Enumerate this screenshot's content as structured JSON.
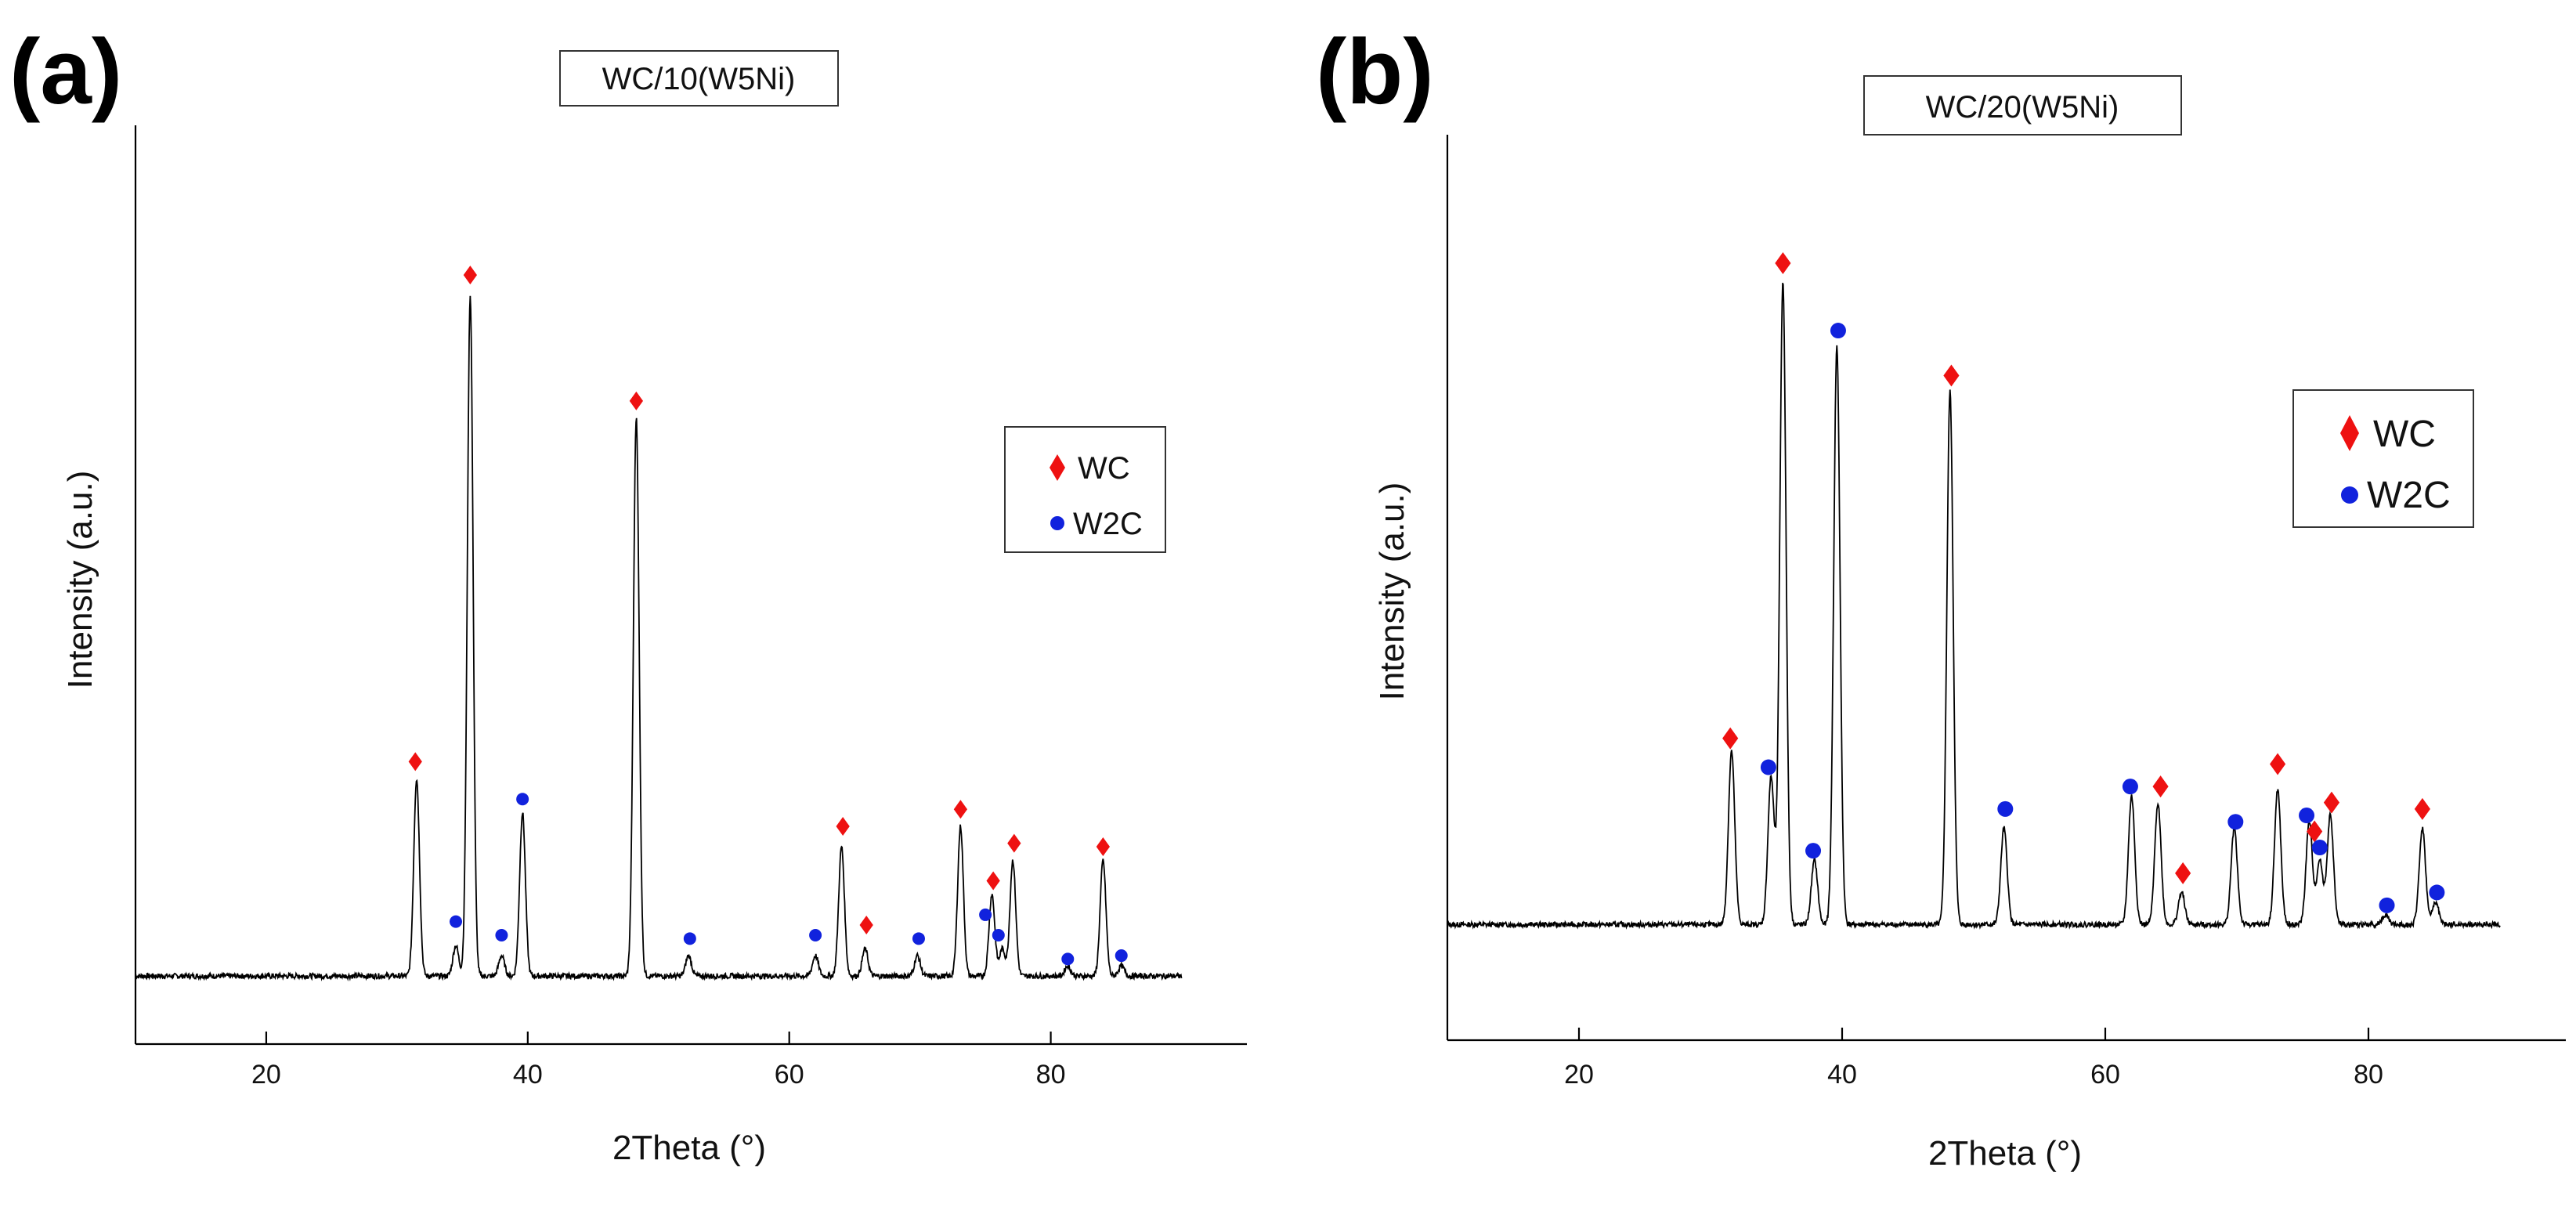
{
  "chart_data": [
    {
      "type": "line",
      "panel_label": "(a)",
      "title": "WC/10(W5Ni)",
      "xlabel": "2Theta (°)",
      "ylabel": "Intensity (a.u.)",
      "xlim": [
        10,
        95
      ],
      "ylim": [
        -0.1,
        1.25
      ],
      "x_ticks": [
        20,
        40,
        60,
        80
      ],
      "x_tick_labels": [
        "20",
        "40",
        "60",
        "80"
      ],
      "pattern_range": [
        10,
        90
      ],
      "baseline": 0,
      "peaks": [
        {
          "x": 31.5,
          "y": 0.29
        },
        {
          "x": 34.5,
          "y": 0.045
        },
        {
          "x": 35.6,
          "y": 1.0
        },
        {
          "x": 38.0,
          "y": 0.03
        },
        {
          "x": 39.6,
          "y": 0.24
        },
        {
          "x": 48.3,
          "y": 0.82
        },
        {
          "x": 52.3,
          "y": 0.03
        },
        {
          "x": 62.0,
          "y": 0.03
        },
        {
          "x": 64.0,
          "y": 0.19
        },
        {
          "x": 65.8,
          "y": 0.04
        },
        {
          "x": 69.8,
          "y": 0.03
        },
        {
          "x": 73.1,
          "y": 0.22
        },
        {
          "x": 75.5,
          "y": 0.12
        },
        {
          "x": 76.3,
          "y": 0.04
        },
        {
          "x": 77.1,
          "y": 0.17
        },
        {
          "x": 81.3,
          "y": 0.015
        },
        {
          "x": 84.0,
          "y": 0.17
        },
        {
          "x": 85.4,
          "y": 0.015
        }
      ],
      "markers": [
        {
          "phase": "WC",
          "x": 31.4,
          "y": 0.315
        },
        {
          "phase": "WC",
          "x": 35.6,
          "y": 1.03
        },
        {
          "phase": "WC",
          "x": 48.3,
          "y": 0.845
        },
        {
          "phase": "WC",
          "x": 64.1,
          "y": 0.22
        },
        {
          "phase": "WC",
          "x": 65.9,
          "y": 0.075
        },
        {
          "phase": "WC",
          "x": 73.1,
          "y": 0.245
        },
        {
          "phase": "WC",
          "x": 75.6,
          "y": 0.14
        },
        {
          "phase": "WC",
          "x": 77.2,
          "y": 0.195
        },
        {
          "phase": "WC",
          "x": 84.0,
          "y": 0.19
        },
        {
          "phase": "W2C",
          "x": 34.5,
          "y": 0.08
        },
        {
          "phase": "W2C",
          "x": 38.0,
          "y": 0.06
        },
        {
          "phase": "W2C",
          "x": 39.6,
          "y": 0.26
        },
        {
          "phase": "W2C",
          "x": 52.4,
          "y": 0.055
        },
        {
          "phase": "W2C",
          "x": 62.0,
          "y": 0.06
        },
        {
          "phase": "W2C",
          "x": 69.9,
          "y": 0.055
        },
        {
          "phase": "W2C",
          "x": 75.0,
          "y": 0.09
        },
        {
          "phase": "W2C",
          "x": 76.0,
          "y": 0.06
        },
        {
          "phase": "W2C",
          "x": 81.3,
          "y": 0.025
        },
        {
          "phase": "W2C",
          "x": 85.4,
          "y": 0.03
        }
      ],
      "legend": [
        {
          "label": "WC",
          "symbol": "diamond",
          "color": "#ee1111"
        },
        {
          "label": "W2C",
          "symbol": "circle",
          "color": "#1122dd"
        }
      ],
      "legend_position": "right"
    },
    {
      "type": "line",
      "panel_label": "(b)",
      "title": "WC/20(W5Ni)",
      "xlabel": "2Theta (°)",
      "ylabel": "Intensity (a.u.)",
      "xlim": [
        10,
        95
      ],
      "ylim": [
        -0.18,
        1.23
      ],
      "x_ticks": [
        20,
        40,
        60,
        80
      ],
      "x_tick_labels": [
        "20",
        "40",
        "60",
        "80"
      ],
      "pattern_range": [
        10,
        90
      ],
      "baseline": 0,
      "peaks": [
        {
          "x": 31.6,
          "y": 0.27
        },
        {
          "x": 34.6,
          "y": 0.23
        },
        {
          "x": 35.5,
          "y": 1.0
        },
        {
          "x": 37.9,
          "y": 0.1
        },
        {
          "x": 39.6,
          "y": 0.9
        },
        {
          "x": 48.2,
          "y": 0.83
        },
        {
          "x": 52.3,
          "y": 0.15
        },
        {
          "x": 62.0,
          "y": 0.2
        },
        {
          "x": 64.0,
          "y": 0.19
        },
        {
          "x": 65.8,
          "y": 0.05
        },
        {
          "x": 69.8,
          "y": 0.15
        },
        {
          "x": 73.1,
          "y": 0.21
        },
        {
          "x": 75.5,
          "y": 0.16
        },
        {
          "x": 76.3,
          "y": 0.1
        },
        {
          "x": 77.1,
          "y": 0.17
        },
        {
          "x": 81.3,
          "y": 0.015
        },
        {
          "x": 84.1,
          "y": 0.15
        },
        {
          "x": 85.1,
          "y": 0.035
        }
      ],
      "markers": [
        {
          "phase": "WC",
          "x": 31.5,
          "y": 0.29
        },
        {
          "phase": "WC",
          "x": 35.5,
          "y": 1.03
        },
        {
          "phase": "WC",
          "x": 48.3,
          "y": 0.855
        },
        {
          "phase": "WC",
          "x": 64.2,
          "y": 0.215
        },
        {
          "phase": "WC",
          "x": 65.9,
          "y": 0.08
        },
        {
          "phase": "WC",
          "x": 73.1,
          "y": 0.25
        },
        {
          "phase": "WC",
          "x": 75.9,
          "y": 0.145
        },
        {
          "phase": "WC",
          "x": 77.2,
          "y": 0.19
        },
        {
          "phase": "WC",
          "x": 84.1,
          "y": 0.18
        },
        {
          "phase": "W2C",
          "x": 34.4,
          "y": 0.245
        },
        {
          "phase": "W2C",
          "x": 37.8,
          "y": 0.115
        },
        {
          "phase": "W2C",
          "x": 39.7,
          "y": 0.925
        },
        {
          "phase": "W2C",
          "x": 52.4,
          "y": 0.18
        },
        {
          "phase": "W2C",
          "x": 61.9,
          "y": 0.215
        },
        {
          "phase": "W2C",
          "x": 69.9,
          "y": 0.16
        },
        {
          "phase": "W2C",
          "x": 75.3,
          "y": 0.17
        },
        {
          "phase": "W2C",
          "x": 76.3,
          "y": 0.12
        },
        {
          "phase": "W2C",
          "x": 81.4,
          "y": 0.03
        },
        {
          "phase": "W2C",
          "x": 85.2,
          "y": 0.05
        }
      ],
      "legend": [
        {
          "label": "WC",
          "symbol": "diamond",
          "color": "#ee1111"
        },
        {
          "label": "W2C",
          "symbol": "circle",
          "color": "#1122dd"
        }
      ],
      "legend_position": "right"
    }
  ]
}
